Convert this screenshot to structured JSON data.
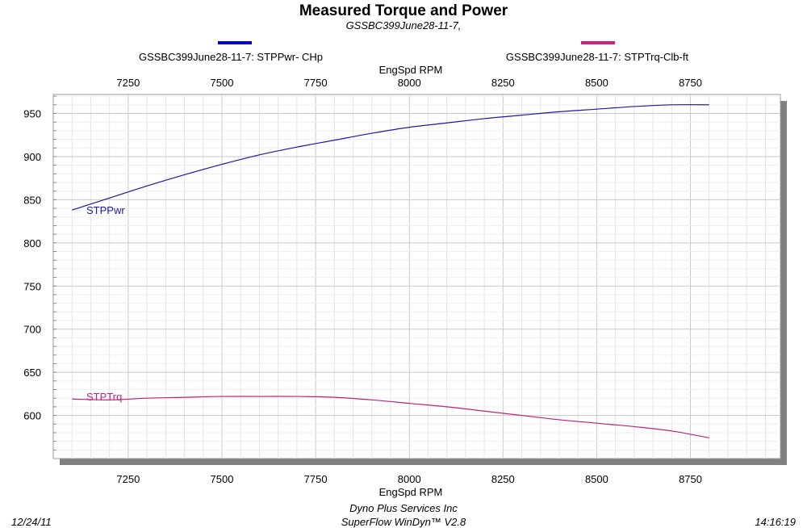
{
  "chart_data": {
    "type": "line",
    "title": "Measured Torque and Power",
    "subtitle": "GSSBC399June28-11-7,",
    "xlabel": "EngSpd  RPM",
    "xlabel_top": "EngSpd  RPM",
    "xlim": [
      7050,
      8990
    ],
    "ylim": [
      550,
      972
    ],
    "x_ticks": [
      7250,
      7500,
      7750,
      8000,
      8250,
      8500,
      8750
    ],
    "x_tick_labels": [
      "7250",
      "7500",
      "7750",
      "8000",
      "8250",
      "8500",
      "8750"
    ],
    "y_ticks": [
      600,
      650,
      700,
      750,
      800,
      850,
      900,
      950
    ],
    "y_tick_labels": [
      "600",
      "650",
      "700",
      "750",
      "800",
      "850",
      "900",
      "950"
    ],
    "grid": true,
    "legend_position": "top",
    "series": [
      {
        "name": "GSSBC399June28-11-7: STPPwr- CHp",
        "label": "STPPwr",
        "color": "#1a1aa6",
        "legend_color": "#0000d0",
        "x": [
          7100,
          7200,
          7300,
          7400,
          7500,
          7600,
          7700,
          7800,
          7900,
          8000,
          8100,
          8200,
          8300,
          8400,
          8500,
          8600,
          8700,
          8800
        ],
        "y": [
          838,
          852,
          866,
          879,
          891,
          902,
          911,
          919,
          927,
          934,
          939,
          944,
          948,
          952,
          955,
          958,
          960,
          960
        ]
      },
      {
        "name": "GSSBC399June28-11-7: STPTrq-Clb-ft",
        "label": "STPTrq",
        "color": "#c0207a",
        "legend_color": "#d0207a",
        "x": [
          7100,
          7200,
          7300,
          7400,
          7500,
          7600,
          7700,
          7800,
          7900,
          8000,
          8100,
          8200,
          8300,
          8400,
          8500,
          8600,
          8700,
          8800
        ],
        "y": [
          619,
          618,
          620,
          621,
          622,
          622,
          622,
          621,
          618,
          614,
          610,
          605,
          600,
          595,
          591,
          587,
          582,
          574
        ]
      }
    ]
  },
  "footer": {
    "date": "12/24/11",
    "company": "Dyno Plus Services Inc",
    "software": "SuperFlow WinDyn™ V2.8",
    "time": "14:16:19"
  }
}
